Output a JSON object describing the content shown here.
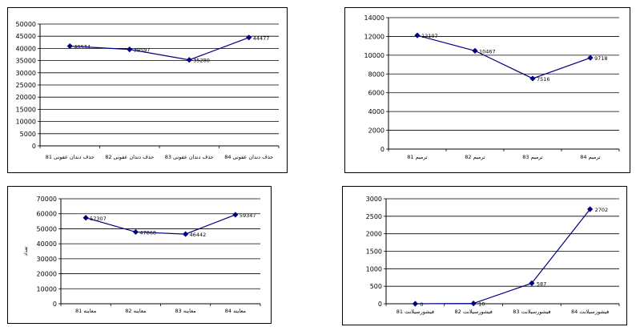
{
  "chart_data": [
    {
      "type": "line",
      "categories": [
        "حذف دندان عفونی 81",
        "حذف دندان عفونی 82",
        "حذف دندان عفونی 83",
        "حذف دندان عفونی 84"
      ],
      "values": [
        40934,
        39597,
        35280,
        44477
      ],
      "data_labels": [
        "40934",
        "39597",
        "35280",
        "44477"
      ],
      "ylim": [
        0,
        50000
      ],
      "yticks": [
        0,
        5000,
        10000,
        15000,
        20000,
        25000,
        30000,
        35000,
        40000,
        45000,
        50000
      ],
      "ylabel": "",
      "grid": true,
      "color": "#000080"
    },
    {
      "type": "line",
      "categories": [
        "ترمیم 81",
        "ترمیم 82",
        "ترمیم 83",
        "ترمیم 84"
      ],
      "values": [
        12107,
        10467,
        7516,
        9718
      ],
      "data_labels": [
        "12107",
        "10467",
        "7516",
        "9718"
      ],
      "ylim": [
        0,
        14000
      ],
      "yticks": [
        0,
        2000,
        4000,
        6000,
        8000,
        10000,
        12000,
        14000
      ],
      "ylabel": "",
      "grid": true,
      "color": "#000080"
    },
    {
      "type": "line",
      "categories": [
        "معاینه 81",
        "معاینه 82",
        "معاینه 83",
        "معاینه 84"
      ],
      "values": [
        57307,
        47868,
        46442,
        59347
      ],
      "data_labels": [
        "57307",
        "47868",
        "46442",
        "59347"
      ],
      "ylim": [
        0,
        70000
      ],
      "yticks": [
        0,
        10000,
        20000,
        30000,
        40000,
        50000,
        60000,
        70000
      ],
      "ylabel": "تعداد",
      "grid": true,
      "color": "#000080"
    },
    {
      "type": "line",
      "categories": [
        "فیشورسیلانت 81",
        "فیشورسیلانت 82",
        "فیشورسیلانت 83",
        "فیشورسیلانت 84"
      ],
      "values": [
        0,
        10,
        587,
        2702
      ],
      "data_labels": [
        "0",
        "10",
        "587",
        "2702"
      ],
      "ylim": [
        0,
        3000
      ],
      "yticks": [
        0,
        500,
        1000,
        1500,
        2000,
        2500,
        3000
      ],
      "ylabel": "",
      "grid": true,
      "color": "#000080"
    }
  ]
}
